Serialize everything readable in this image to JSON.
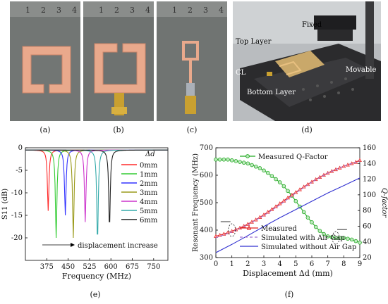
{
  "photos": {
    "a": {
      "caption": "(a)",
      "ruler": [
        "1",
        "2",
        "3",
        "4"
      ]
    },
    "b": {
      "caption": "(b)",
      "ruler": [
        "1",
        "2",
        "3",
        "4"
      ]
    },
    "c": {
      "caption": "(c)",
      "ruler": [
        "1",
        "2",
        "3",
        "4"
      ]
    },
    "d": {
      "caption": "(d)",
      "labels": {
        "fixed": "Fixed",
        "top_layer": "Top Layer",
        "cl": "CL",
        "movable": "Movable",
        "bottom_layer": "Bottom Layer"
      }
    }
  },
  "captions": {
    "e": "(e)",
    "f": "(f)"
  },
  "chart_data": [
    {
      "type": "line",
      "xlabel": "Frequency (MHz)",
      "ylabel": "S11 (dB)",
      "xlim": [
        300,
        800
      ],
      "ylim": [
        -25,
        0
      ],
      "xticks": [
        375,
        450,
        525,
        600,
        675,
        750
      ],
      "yticks": [
        0,
        -5,
        -10,
        -15,
        -20
      ],
      "legend_title": "Δd",
      "legend_position": "right",
      "annotation": "displacement increase",
      "series": [
        {
          "name": "0mm",
          "color": "#ff2a2a",
          "f0": 380,
          "depth": -14
        },
        {
          "name": "1mm",
          "color": "#33cc33",
          "f0": 408,
          "depth": -20
        },
        {
          "name": "2mm",
          "color": "#3333ff",
          "f0": 440,
          "depth": -15
        },
        {
          "name": "3mm",
          "color": "#9a9a1a",
          "f0": 468,
          "depth": -20
        },
        {
          "name": "4mm",
          "color": "#cc33cc",
          "f0": 510,
          "depth": -16.5
        },
        {
          "name": "5mm",
          "color": "#33aaaa",
          "f0": 553,
          "depth": -21
        },
        {
          "name": "6mm",
          "color": "#222222",
          "f0": 595,
          "depth": -18
        }
      ]
    },
    {
      "type": "line",
      "xlabel": "Displacement Δd (mm)",
      "ylabel": "Resonant Frequency (MHz)",
      "y2label": "Q-factor",
      "xlim": [
        0,
        9
      ],
      "ylim": [
        300,
        700
      ],
      "y2lim": [
        20,
        160
      ],
      "xticks": [
        0,
        1,
        2,
        3,
        4,
        5,
        6,
        7,
        8,
        9
      ],
      "yticks": [
        300,
        400,
        500,
        600,
        700
      ],
      "y2ticks": [
        20,
        40,
        60,
        80,
        100,
        120,
        140,
        160
      ],
      "series": [
        {
          "name": "Measured Q-Factor",
          "axis": "right",
          "color": "#22aa22",
          "marker": "circle",
          "x": [
            0,
            0.25,
            0.5,
            0.75,
            1,
            1.25,
            1.5,
            1.75,
            2,
            2.25,
            2.5,
            2.75,
            3,
            3.25,
            3.5,
            3.75,
            4,
            4.25,
            4.5,
            4.75,
            5,
            5.25,
            5.5,
            5.75,
            6,
            6.25,
            6.5,
            6.75,
            7,
            7.25,
            7.5,
            7.75,
            8,
            8.25,
            8.5,
            8.75,
            9
          ],
          "y": [
            145,
            145,
            145,
            145,
            144,
            143,
            142,
            141,
            140,
            138,
            136,
            134,
            131,
            128,
            124,
            120,
            116,
            111,
            105,
            99,
            92,
            85,
            78,
            71,
            65,
            59,
            54,
            50,
            47,
            46,
            45,
            45,
            45,
            44,
            43,
            41,
            39
          ]
        },
        {
          "name": "Measured",
          "axis": "left",
          "color": "#e02020",
          "marker": "triangle",
          "x": [
            0,
            0.25,
            0.5,
            0.75,
            1,
            1.25,
            1.5,
            1.75,
            2,
            2.25,
            2.5,
            2.75,
            3,
            3.25,
            3.5,
            3.75,
            4,
            4.25,
            4.5,
            4.75,
            5,
            5.25,
            5.5,
            5.75,
            6,
            6.25,
            6.5,
            6.75,
            7,
            7.25,
            7.5,
            7.75,
            8,
            8.25,
            8.5,
            8.75,
            9
          ],
          "y": [
            378,
            382,
            386,
            391,
            396,
            402,
            408,
            415,
            422,
            430,
            438,
            447,
            456,
            466,
            476,
            486,
            497,
            507,
            518,
            528,
            538,
            548,
            558,
            567,
            576,
            585,
            593,
            601,
            608,
            615,
            621,
            627,
            633,
            638,
            643,
            648,
            655
          ]
        },
        {
          "name": "Simulated with Air Gap",
          "axis": "left",
          "color": "#a070d0",
          "dash": true,
          "x": [
            0,
            1,
            2,
            3,
            4,
            5,
            6,
            7,
            8,
            9
          ],
          "y": [
            372,
            393,
            420,
            453,
            492,
            535,
            575,
            608,
            633,
            652
          ]
        },
        {
          "name": "Simulated without Air Gap",
          "axis": "left",
          "color": "#3030d0",
          "x": [
            0,
            1,
            2,
            3,
            4,
            5,
            6,
            7,
            8,
            9
          ],
          "y": [
            318,
            348,
            380,
            413,
            445,
            475,
            505,
            535,
            562,
            590
          ]
        }
      ]
    }
  ]
}
